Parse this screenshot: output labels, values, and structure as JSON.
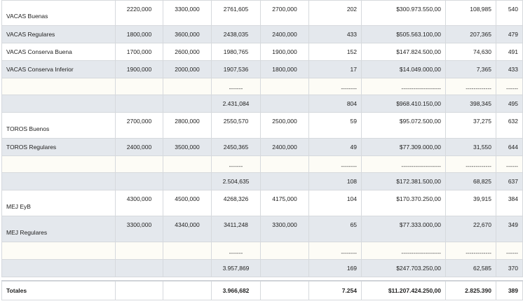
{
  "rows": [
    {
      "label": "VACAS Buenas",
      "c1": "2220,000",
      "c2": "3300,000",
      "c3": "2761,605",
      "c4": "2700,000",
      "c5": "202",
      "c6": "$300.973.550,00",
      "c7": "108,985",
      "c8": "540"
    },
    {
      "label": "VACAS Regulares",
      "c1": "1800,000",
      "c2": "3600,000",
      "c3": "2438,035",
      "c4": "2400,000",
      "c5": "433",
      "c6": "$505.563.100,00",
      "c7": "207,365",
      "c8": "479"
    },
    {
      "label": "VACAS Conserva Buena",
      "c1": "1700,000",
      "c2": "2600,000",
      "c3": "1980,765",
      "c4": "1900,000",
      "c5": "152",
      "c6": "$147.824.500,00",
      "c7": "74,630",
      "c8": "491"
    },
    {
      "label": "VACAS Conserva Inferior",
      "c1": "1900,000",
      "c2": "2000,000",
      "c3": "1907,536",
      "c4": "1800,000",
      "c5": "17",
      "c6": "$14.049.000,00",
      "c7": "7,365",
      "c8": "433"
    },
    {
      "label": "",
      "c1": "",
      "c2": "",
      "c3": "-------",
      "c4": "",
      "c5": "--------",
      "c6": "--------------------",
      "c7": "-------------",
      "c8": "------"
    },
    {
      "label": "",
      "c1": "",
      "c2": "",
      "c3": "2.431,084",
      "c4": "",
      "c5": "804",
      "c6": "$968.410.150,00",
      "c7": "398,345",
      "c8": "495"
    },
    {
      "label": "TOROS Buenos",
      "c1": "2700,000",
      "c2": "2800,000",
      "c3": "2550,570",
      "c4": "2500,000",
      "c5": "59",
      "c6": "$95.072.500,00",
      "c7": "37,275",
      "c8": "632"
    },
    {
      "label": "TOROS Regulares",
      "c1": "2400,000",
      "c2": "3500,000",
      "c3": "2450,365",
      "c4": "2400,000",
      "c5": "49",
      "c6": "$77.309.000,00",
      "c7": "31,550",
      "c8": "644"
    },
    {
      "label": "",
      "c1": "",
      "c2": "",
      "c3": "-------",
      "c4": "",
      "c5": "--------",
      "c6": "--------------------",
      "c7": "-------------",
      "c8": "------"
    },
    {
      "label": "",
      "c1": "",
      "c2": "",
      "c3": "2.504,635",
      "c4": "",
      "c5": "108",
      "c6": "$172.381.500,00",
      "c7": "68,825",
      "c8": "637"
    },
    {
      "label": "MEJ EyB",
      "c1": "4300,000",
      "c2": "4500,000",
      "c3": "4268,326",
      "c4": "4175,000",
      "c5": "104",
      "c6": "$170.370.250,00",
      "c7": "39,915",
      "c8": "384"
    },
    {
      "label": "MEJ Regulares",
      "c1": "3300,000",
      "c2": "4340,000",
      "c3": "3411,248",
      "c4": "3300,000",
      "c5": "65",
      "c6": "$77.333.000,00",
      "c7": "22,670",
      "c8": "349"
    },
    {
      "label": "",
      "c1": "",
      "c2": "",
      "c3": "-------",
      "c4": "",
      "c5": "--------",
      "c6": "--------------------",
      "c7": "-------------",
      "c8": "------"
    },
    {
      "label": "",
      "c1": "",
      "c2": "",
      "c3": "3.957,869",
      "c4": "",
      "c5": "169",
      "c6": "$247.703.250,00",
      "c7": "62,585",
      "c8": "370"
    }
  ],
  "totals": {
    "label": "Totales",
    "c1": "",
    "c2": "",
    "c3": "3.966,682",
    "c4": "",
    "c5": "7.254",
    "c6": "$11.207.424.250,00",
    "c7": "2.825.390",
    "c8": "389"
  }
}
